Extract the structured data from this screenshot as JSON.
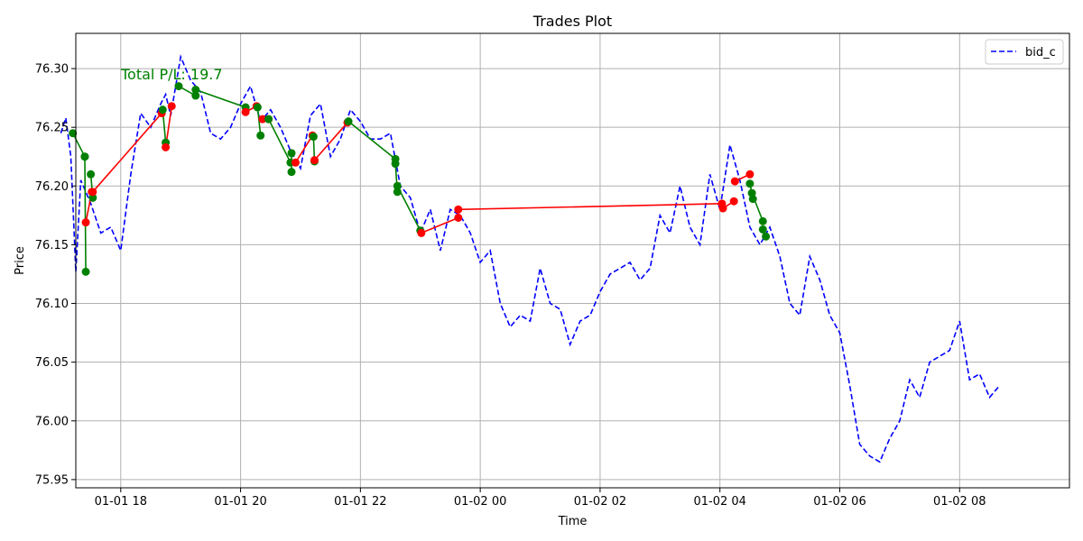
{
  "chart_data": {
    "type": "line",
    "title": "Trades Plot",
    "xlabel": "Time",
    "ylabel": "Price",
    "annotation": "Total P/L: 19.7",
    "x_ticks": [
      "01-01 18",
      "01-01 20",
      "01-01 22",
      "01-02 00",
      "01-02 02",
      "01-02 04",
      "01-02 06",
      "01-02 08"
    ],
    "y_ticks": [
      "75.95",
      "76.00",
      "76.05",
      "76.10",
      "76.15",
      "76.20",
      "76.25",
      "76.30"
    ],
    "xlim": [
      "01-01 17:15",
      "01-02 09:50"
    ],
    "ylim": [
      75.943,
      76.33
    ],
    "grid": true,
    "legend_position": "top-right",
    "colors": {
      "bid": "#0000ff",
      "win": "#008000",
      "loss": "#ff0000",
      "annotation": "#008000"
    },
    "series": [
      {
        "name": "bid_c",
        "style": "dashed",
        "x": [
          "01-01 17:00",
          "01-01 17:05",
          "01-01 17:10",
          "01-01 17:15",
          "01-01 17:20",
          "01-01 17:30",
          "01-01 17:40",
          "01-01 17:50",
          "01-01 18:00",
          "01-01 18:10",
          "01-01 18:20",
          "01-01 18:30",
          "01-01 18:40",
          "01-01 18:45",
          "01-01 18:50",
          "01-01 19:00",
          "01-01 19:10",
          "01-01 19:20",
          "01-01 19:30",
          "01-01 19:40",
          "01-01 19:50",
          "01-01 20:00",
          "01-01 20:10",
          "01-01 20:20",
          "01-01 20:30",
          "01-01 20:40",
          "01-01 20:50",
          "01-01 21:00",
          "01-01 21:10",
          "01-01 21:20",
          "01-01 21:30",
          "01-01 21:40",
          "01-01 21:50",
          "01-01 22:00",
          "01-01 22:10",
          "01-01 22:20",
          "01-01 22:30",
          "01-01 22:40",
          "01-01 22:50",
          "01-01 23:00",
          "01-01 23:10",
          "01-01 23:20",
          "01-01 23:30",
          "01-01 23:40",
          "01-01 23:50",
          "01-02 00:00",
          "01-02 00:10",
          "01-02 00:20",
          "01-02 00:30",
          "01-02 00:40",
          "01-02 00:50",
          "01-02 01:00",
          "01-02 01:10",
          "01-02 01:20",
          "01-02 01:30",
          "01-02 01:40",
          "01-02 01:50",
          "01-02 02:00",
          "01-02 02:10",
          "01-02 02:20",
          "01-02 02:30",
          "01-02 02:40",
          "01-02 02:50",
          "01-02 03:00",
          "01-02 03:10",
          "01-02 03:20",
          "01-02 03:30",
          "01-02 03:40",
          "01-02 03:50",
          "01-02 04:00",
          "01-02 04:10",
          "01-02 04:20",
          "01-02 04:30",
          "01-02 04:40",
          "01-02 04:50",
          "01-02 05:00",
          "01-02 05:10",
          "01-02 05:20",
          "01-02 05:30",
          "01-02 05:40",
          "01-02 05:50",
          "01-02 06:00",
          "01-02 06:10",
          "01-02 06:20",
          "01-02 06:30",
          "01-02 06:40",
          "01-02 06:50",
          "01-02 07:00",
          "01-02 07:10",
          "01-02 07:20",
          "01-02 07:30",
          "01-02 07:40",
          "01-02 07:50",
          "01-02 08:00",
          "01-02 08:10",
          "01-02 08:20",
          "01-02 08:30",
          "01-02 08:40"
        ],
        "y": [
          76.245,
          76.258,
          76.225,
          76.127,
          76.205,
          76.185,
          76.16,
          76.165,
          76.145,
          76.21,
          76.262,
          76.25,
          76.27,
          76.278,
          76.26,
          76.31,
          76.29,
          76.28,
          76.245,
          76.24,
          76.25,
          76.27,
          76.285,
          76.255,
          76.265,
          76.25,
          76.23,
          76.215,
          76.26,
          76.27,
          76.225,
          76.24,
          76.265,
          76.255,
          76.24,
          76.24,
          76.245,
          76.2,
          76.19,
          76.16,
          76.18,
          76.145,
          76.18,
          76.175,
          76.16,
          76.135,
          76.145,
          76.1,
          76.08,
          76.09,
          76.085,
          76.13,
          76.1,
          76.095,
          76.065,
          76.085,
          76.09,
          76.11,
          76.125,
          76.13,
          76.135,
          76.12,
          76.13,
          76.175,
          76.16,
          76.2,
          76.165,
          76.15,
          76.21,
          76.18,
          76.235,
          76.205,
          76.165,
          76.15,
          76.165,
          76.14,
          76.1,
          76.09,
          76.14,
          76.12,
          76.09,
          76.075,
          76.03,
          75.98,
          75.97,
          75.965,
          75.985,
          76.0,
          76.035,
          76.02,
          76.05,
          76.055,
          76.06,
          76.085,
          76.035,
          76.04,
          76.02,
          76.03
        ]
      }
    ],
    "trades": [
      {
        "result": "win",
        "entry": {
          "x": "01-01 17:12",
          "y": 76.245
        },
        "exit": {
          "x": "01-01 17:24",
          "y": 76.225
        }
      },
      {
        "result": "win",
        "entry": {
          "x": "01-01 17:24",
          "y": 76.225
        },
        "exit": {
          "x": "01-01 17:25",
          "y": 76.127
        }
      },
      {
        "result": "loss",
        "entry": {
          "x": "01-01 17:25",
          "y": 76.169
        },
        "exit": {
          "x": "01-01 17:31",
          "y": 76.195
        }
      },
      {
        "result": "win",
        "entry": {
          "x": "01-01 17:30",
          "y": 76.21
        },
        "exit": {
          "x": "01-01 17:32",
          "y": 76.19
        }
      },
      {
        "result": "loss",
        "entry": {
          "x": "01-01 17:32",
          "y": 76.195
        },
        "exit": {
          "x": "01-01 18:41",
          "y": 76.262
        }
      },
      {
        "result": "win",
        "entry": {
          "x": "01-01 18:42",
          "y": 76.265
        },
        "exit": {
          "x": "01-01 18:45",
          "y": 76.237
        }
      },
      {
        "result": "loss",
        "entry": {
          "x": "01-01 18:45",
          "y": 76.233
        },
        "exit": {
          "x": "01-01 18:51",
          "y": 76.268
        }
      },
      {
        "result": "win",
        "entry": {
          "x": "01-01 18:58",
          "y": 76.285
        },
        "exit": {
          "x": "01-01 19:15",
          "y": 76.277
        }
      },
      {
        "result": "win",
        "entry": {
          "x": "01-01 19:15",
          "y": 76.282
        },
        "exit": {
          "x": "01-01 20:05",
          "y": 76.267
        }
      },
      {
        "result": "loss",
        "entry": {
          "x": "01-01 20:05",
          "y": 76.263
        },
        "exit": {
          "x": "01-01 20:16",
          "y": 76.268
        }
      },
      {
        "result": "win",
        "entry": {
          "x": "01-01 20:17",
          "y": 76.267
        },
        "exit": {
          "x": "01-01 20:20",
          "y": 76.243
        }
      },
      {
        "result": "loss",
        "entry": {
          "x": "01-01 20:22",
          "y": 76.257
        },
        "exit": {
          "x": "01-01 20:28",
          "y": 76.257
        }
      },
      {
        "result": "win",
        "entry": {
          "x": "01-01 20:28",
          "y": 76.257
        },
        "exit": {
          "x": "01-01 20:50",
          "y": 76.22
        }
      },
      {
        "result": "win",
        "entry": {
          "x": "01-01 20:51",
          "y": 76.228
        },
        "exit": {
          "x": "01-01 20:51",
          "y": 76.212
        }
      },
      {
        "result": "loss",
        "entry": {
          "x": "01-01 20:55",
          "y": 76.22
        },
        "exit": {
          "x": "01-01 21:12",
          "y": 76.243
        }
      },
      {
        "result": "win",
        "entry": {
          "x": "01-01 21:13",
          "y": 76.242
        },
        "exit": {
          "x": "01-01 21:14",
          "y": 76.221
        }
      },
      {
        "result": "loss",
        "entry": {
          "x": "01-01 21:14",
          "y": 76.222
        },
        "exit": {
          "x": "01-01 21:47",
          "y": 76.254
        }
      },
      {
        "result": "win",
        "entry": {
          "x": "01-01 21:48",
          "y": 76.255
        },
        "exit": {
          "x": "01-01 22:35",
          "y": 76.223
        }
      },
      {
        "result": "win",
        "entry": {
          "x": "01-01 22:35",
          "y": 76.219
        },
        "exit": {
          "x": "01-01 22:37",
          "y": 76.195
        }
      },
      {
        "result": "win",
        "entry": {
          "x": "01-01 22:37",
          "y": 76.2
        },
        "exit": {
          "x": "01-01 23:00",
          "y": 76.162
        }
      },
      {
        "result": "loss",
        "entry": {
          "x": "01-01 23:01",
          "y": 76.16
        },
        "exit": {
          "x": "01-01 23:38",
          "y": 76.173
        }
      },
      {
        "result": "loss",
        "entry": {
          "x": "01-01 23:38",
          "y": 76.18
        },
        "exit": {
          "x": "01-02 04:02",
          "y": 76.185
        }
      },
      {
        "result": "loss",
        "entry": {
          "x": "01-02 04:03",
          "y": 76.181
        },
        "exit": {
          "x": "01-02 04:14",
          "y": 76.187
        }
      },
      {
        "result": "loss",
        "entry": {
          "x": "01-02 04:15",
          "y": 76.204
        },
        "exit": {
          "x": "01-02 04:30",
          "y": 76.21
        }
      },
      {
        "result": "win",
        "entry": {
          "x": "01-02 04:30",
          "y": 76.202
        },
        "exit": {
          "x": "01-02 04:33",
          "y": 76.189
        }
      },
      {
        "result": "win",
        "entry": {
          "x": "01-02 04:32",
          "y": 76.194
        },
        "exit": {
          "x": "01-02 04:43",
          "y": 76.17
        }
      },
      {
        "result": "win",
        "entry": {
          "x": "01-02 04:43",
          "y": 76.163
        },
        "exit": {
          "x": "01-02 04:46",
          "y": 76.157
        }
      }
    ]
  }
}
